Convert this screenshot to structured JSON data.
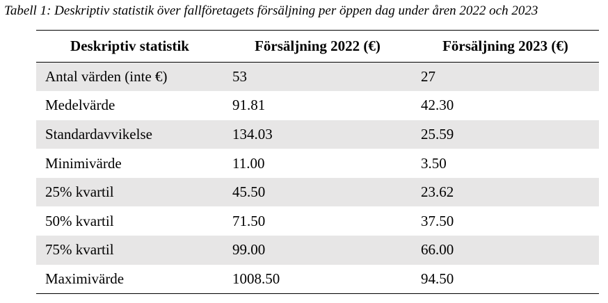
{
  "caption": "Tabell 1: Deskriptiv statistik över fallföretagets försäljning per öppen dag under åren 2022 och 2023",
  "table": {
    "headers": [
      "Deskriptiv statistik",
      "Försäljning 2022 (€)",
      "Försäljning 2023 (€)"
    ],
    "rows": [
      [
        "Antal värden (inte €)",
        "53",
        "27"
      ],
      [
        "Medelvärde",
        "91.81",
        "42.30"
      ],
      [
        "Standardavvikelse",
        "134.03",
        "25.59"
      ],
      [
        "Minimivärde",
        "11.00",
        "3.50"
      ],
      [
        "25% kvartil",
        "45.50",
        "23.62"
      ],
      [
        "50% kvartil",
        "71.50",
        "37.50"
      ],
      [
        "75% kvartil",
        "99.00",
        "66.00"
      ],
      [
        "Maximivärde",
        "1008.50",
        "94.50"
      ]
    ]
  },
  "colors": {
    "stripe": "#e7e6e6",
    "rule": "#000000"
  }
}
